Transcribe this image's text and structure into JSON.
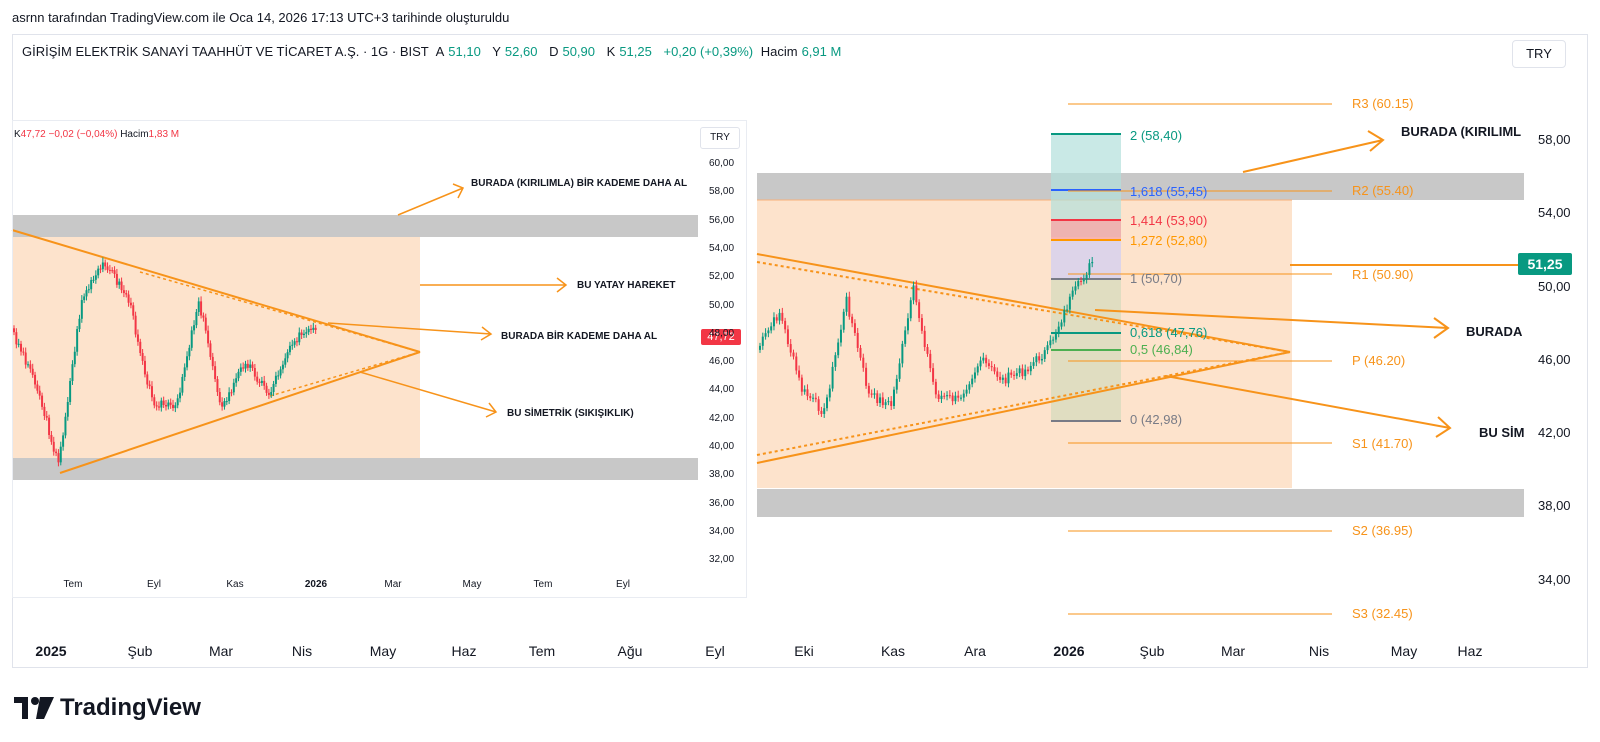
{
  "caption": "asrnn tarafından TradingView.com ile Oca 14, 2026 17:13 UTC+3 tarihinde oluşturuldu",
  "header": {
    "symbol": "GİRİŞİM ELEKTRİK SANAYİ TAAHHÜT VE TİCARET A.Ş. · 1G · BIST",
    "open_label": "A",
    "open": "51,10",
    "high_label": "Y",
    "high": "52,60",
    "low_label": "D",
    "low": "50,90",
    "close_label": "K",
    "close": "51,25",
    "change": "+0,20 (+0,39%)",
    "volume_label": "Hacim",
    "volume": "6,91 M"
  },
  "currency_button": "TRY",
  "last_price": "51,25",
  "price_axis": [
    "58,00",
    "54,00",
    "50,00",
    "46,00",
    "42,00",
    "38,00",
    "34,00"
  ],
  "date_axis": [
    {
      "label": "2025",
      "bold": true
    },
    {
      "label": "Şub"
    },
    {
      "label": "Mar"
    },
    {
      "label": "Nis"
    },
    {
      "label": "May"
    },
    {
      "label": "Haz"
    },
    {
      "label": "Tem"
    },
    {
      "label": "Ağu"
    },
    {
      "label": "Eyl"
    },
    {
      "label": "Eki"
    },
    {
      "label": "Kas"
    },
    {
      "label": "Ara"
    },
    {
      "label": "2026",
      "bold": true
    },
    {
      "label": "Şub"
    },
    {
      "label": "Mar"
    },
    {
      "label": "Nis"
    },
    {
      "label": "May"
    },
    {
      "label": "Haz"
    }
  ],
  "fib_levels": [
    {
      "label": "2 (58,40)",
      "color": "#089981"
    },
    {
      "label": "1,618 (55,45)",
      "color": "#2962ff"
    },
    {
      "label": "1,414 (53,90)",
      "color": "#f23645"
    },
    {
      "label": "1,272 (52,80)",
      "color": "#ff9800"
    },
    {
      "label": "1 (50,70)",
      "color": "#787b86"
    },
    {
      "label": "0,618 (47,76)",
      "color": "#089981"
    },
    {
      "label": "0,5 (46,84)",
      "color": "#4caf50"
    },
    {
      "label": "0 (42,98)",
      "color": "#787b86"
    }
  ],
  "pivots": [
    "R3 (60.15)",
    "R2 (55.40)",
    "R1 (50.90)",
    "P (46.20)",
    "S1 (41.70)",
    "S2 (36.95)",
    "S3 (32.45)"
  ],
  "annotations": {
    "main_breakout": "BURADA (KIRILIML",
    "main_buy": "BURADA",
    "main_sym": "BU SİM"
  },
  "inset": {
    "legend_close_label": "K",
    "legend_close": "47,72",
    "legend_change": "−0,02 (−0,04%)",
    "legend_volume_label": "Hacim",
    "legend_volume": "1,83 M",
    "currency": "TRY",
    "last_price": "47,72",
    "price_axis": [
      "60,00",
      "58,00",
      "56,00",
      "54,00",
      "52,00",
      "50,00",
      "48,00",
      "46,00",
      "44,00",
      "42,00",
      "40,00",
      "38,00",
      "36,00",
      "34,00",
      "32,00"
    ],
    "date_axis": [
      {
        "label": "Tem"
      },
      {
        "label": "Eyl"
      },
      {
        "label": "Kas"
      },
      {
        "label": "2026",
        "bold": true
      },
      {
        "label": "Mar"
      },
      {
        "label": "May"
      },
      {
        "label": "Tem"
      },
      {
        "label": "Eyl"
      }
    ],
    "annotations": {
      "breakout": "BURADA (KIRILIMLA) BİR KADEME DAHA AL",
      "horizontal": "BU YATAY HAREKET",
      "buy": "BURADA BİR KADEME DAHA AL",
      "sym": "BU SİMETRİK (SIKIŞIKLIK)"
    }
  },
  "logo_text": "TradingView",
  "colors": {
    "up": "#089981",
    "down": "#f23645",
    "orange": "#f7931a",
    "zone": "#fde3cc",
    "gray_zone": "#c8c8c8"
  }
}
